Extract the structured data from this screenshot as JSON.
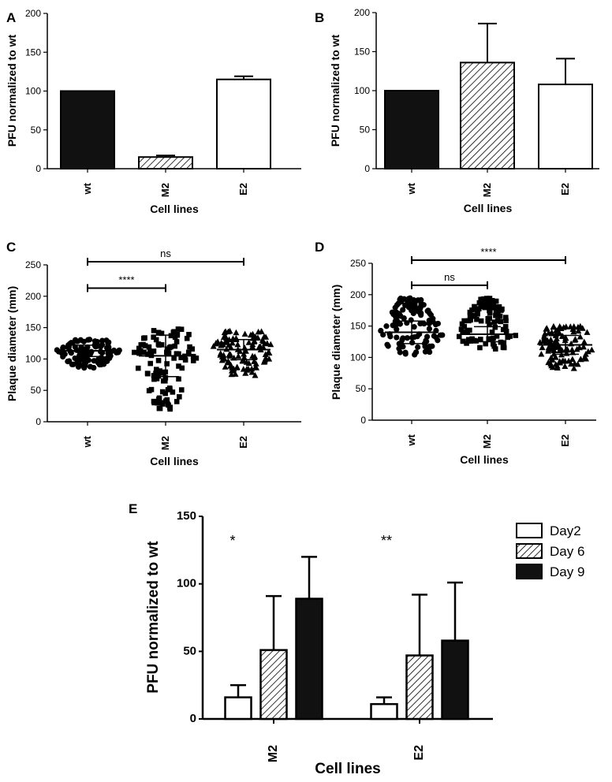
{
  "chart_data": [
    {
      "id": "A",
      "label": "A",
      "type": "bar",
      "xlabel": "Cell lines",
      "ylabel": "PFU normalized to wt",
      "ylim": [
        0,
        200
      ],
      "yticks": [
        0,
        50,
        100,
        150,
        200
      ],
      "categories": [
        "wt",
        "M2",
        "E2"
      ],
      "values": [
        100,
        15,
        115
      ],
      "errors": [
        0,
        2,
        4
      ],
      "fills": [
        "solid",
        "hatch",
        "white"
      ]
    },
    {
      "id": "B",
      "label": "B",
      "type": "bar",
      "xlabel": "Cell lines",
      "ylabel": "PFU normalized to wt",
      "ylim": [
        0,
        200
      ],
      "yticks": [
        0,
        50,
        100,
        150,
        200
      ],
      "categories": [
        "wt",
        "M2",
        "E2"
      ],
      "values": [
        100,
        136,
        108
      ],
      "errors": [
        0,
        50,
        33
      ],
      "fills": [
        "solid",
        "hatch",
        "white"
      ]
    },
    {
      "id": "C",
      "label": "C",
      "type": "scatter",
      "xlabel": "Cell lines",
      "ylabel": "Plaque diameter (mm)",
      "ylim": [
        0,
        250
      ],
      "yticks": [
        0,
        50,
        100,
        150,
        200,
        250
      ],
      "categories": [
        "wt",
        "M2",
        "E2"
      ],
      "markers": [
        "circle",
        "square",
        "triangle"
      ],
      "groups": [
        {
          "name": "wt",
          "min": 85,
          "max": 132,
          "mean": 113,
          "sd": 9
        },
        {
          "name": "M2",
          "min": 18,
          "max": 150,
          "mean": 105,
          "sd": 33,
          "secondary_min": 18,
          "secondary_max": 55
        },
        {
          "name": "E2",
          "min": 73,
          "max": 145,
          "mean": 115,
          "sd": 16
        }
      ],
      "brackets": [
        {
          "from": "wt",
          "to": "E2",
          "y": 255,
          "label": "ns"
        },
        {
          "from": "wt",
          "to": "M2",
          "y": 213,
          "label": "****"
        }
      ]
    },
    {
      "id": "D",
      "label": "D",
      "type": "scatter",
      "xlabel": "Cell lines",
      "ylabel": "Plaque diameter (mm)",
      "ylim": [
        0,
        250
      ],
      "yticks": [
        0,
        50,
        100,
        150,
        200,
        250
      ],
      "categories": [
        "wt",
        "M2",
        "E2"
      ],
      "markers": [
        "circle",
        "square",
        "triangle"
      ],
      "groups": [
        {
          "name": "wt",
          "min": 103,
          "max": 195,
          "mean": 140,
          "sd": 18
        },
        {
          "name": "M2",
          "min": 112,
          "max": 195,
          "mean": 137,
          "sd": 12
        },
        {
          "name": "E2",
          "min": 82,
          "max": 150,
          "mean": 120,
          "sd": 15
        }
      ],
      "brackets": [
        {
          "from": "wt",
          "to": "E2",
          "y": 255,
          "label": "****"
        },
        {
          "from": "wt",
          "to": "M2",
          "y": 215,
          "label": "ns"
        }
      ]
    },
    {
      "id": "E",
      "label": "E",
      "type": "bar",
      "xlabel": "Cell lines",
      "ylabel": "PFU normalized to wt",
      "ylim": [
        0,
        150
      ],
      "yticks": [
        0,
        50,
        100,
        150
      ],
      "categories": [
        "M2",
        "E2"
      ],
      "series": [
        {
          "name": "Day2",
          "fill": "white",
          "values": [
            16,
            11
          ],
          "errors": [
            9,
            5
          ]
        },
        {
          "name": "Day 6",
          "fill": "hatch",
          "values": [
            51,
            47
          ],
          "errors": [
            40,
            45
          ]
        },
        {
          "name": "Day 9",
          "fill": "solid",
          "values": [
            89,
            58
          ],
          "errors": [
            31,
            43
          ]
        }
      ],
      "annotations": [
        {
          "category": "M2",
          "text": "*"
        },
        {
          "category": "E2",
          "text": "**"
        }
      ]
    }
  ]
}
